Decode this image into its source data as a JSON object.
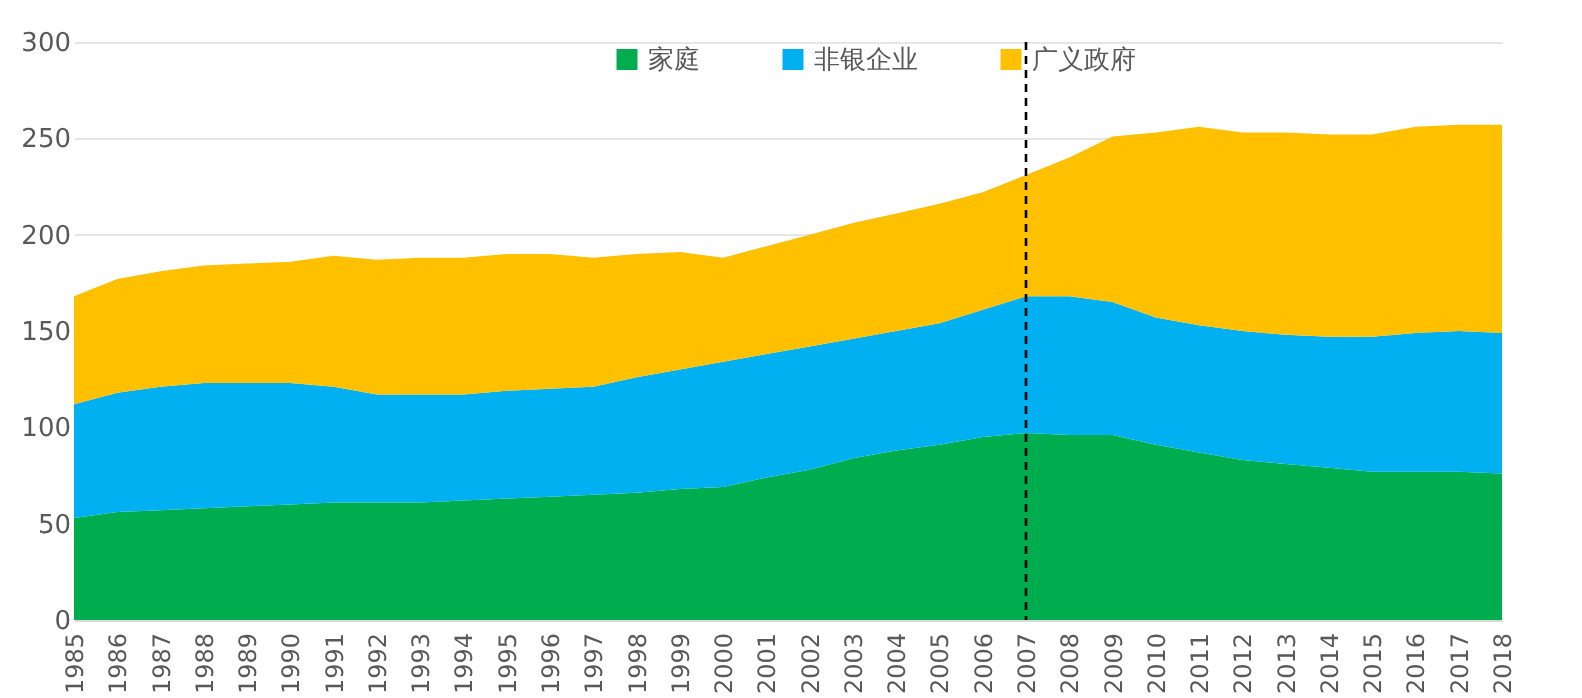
{
  "chart_data": {
    "type": "area",
    "stacked": true,
    "categories": [
      "1985",
      "1986",
      "1987",
      "1988",
      "1989",
      "1990",
      "1991",
      "1992",
      "1993",
      "1994",
      "1995",
      "1996",
      "1997",
      "1998",
      "1999",
      "2000",
      "2001",
      "2002",
      "2003",
      "2004",
      "2005",
      "2006",
      "2007",
      "2008",
      "2009",
      "2010",
      "2011",
      "2012",
      "2013",
      "2014",
      "2015",
      "2016",
      "2017",
      "2018"
    ],
    "series": [
      {
        "name": "家庭",
        "color": "#00ad4e",
        "values": [
          53,
          56,
          57,
          58,
          59,
          60,
          61,
          61,
          61,
          62,
          63,
          64,
          65,
          66,
          68,
          69,
          74,
          78,
          84,
          88,
          91,
          95,
          97,
          96,
          96,
          91,
          87,
          83,
          81,
          79,
          77,
          77,
          77,
          76
        ]
      },
      {
        "name": "非银企业",
        "color": "#00b0f0",
        "values": [
          59,
          62,
          64,
          65,
          64,
          63,
          60,
          56,
          56,
          55,
          56,
          56,
          56,
          60,
          62,
          65,
          64,
          64,
          62,
          62,
          63,
          66,
          71,
          72,
          69,
          66,
          66,
          67,
          67,
          68,
          70,
          72,
          73,
          73
        ]
      },
      {
        "name": "广义政府",
        "color": "#ffc000",
        "values": [
          56,
          59,
          60,
          61,
          62,
          63,
          68,
          70,
          71,
          71,
          71,
          70,
          67,
          64,
          61,
          54,
          56,
          58,
          60,
          61,
          62,
          61,
          63,
          72,
          86,
          96,
          103,
          103,
          105,
          105,
          105,
          107,
          107,
          108
        ]
      }
    ],
    "ylim": [
      0,
      300
    ],
    "yticks": [
      0,
      50,
      100,
      150,
      200,
      250,
      300
    ],
    "grid": "y",
    "legend": "top",
    "ref_lines": [
      {
        "axis": "x",
        "value": "2007",
        "color": "#000000",
        "line_style": "dashed"
      }
    ]
  }
}
